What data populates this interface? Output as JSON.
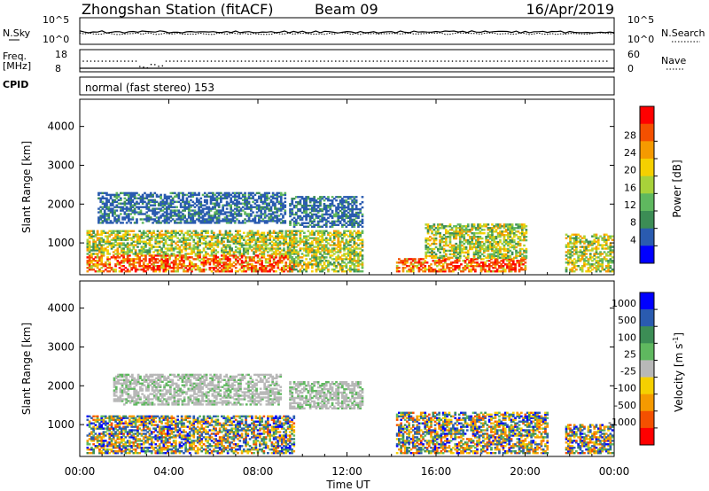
{
  "header": {
    "station": "Zhongshan Station (fitACF)",
    "beam": "Beam 09",
    "date": "16/Apr/2019"
  },
  "strip": {
    "nsky_label": "N.Sky",
    "nsky_ticks": [
      "10^5",
      "10^0"
    ],
    "nsearch_label": "N.Search",
    "nsearch_ticks": [
      "10^5",
      "10^0"
    ],
    "freq_label": "Freq.",
    "freq_unit": "[MHz]",
    "freq_ticks": [
      "18",
      "8"
    ],
    "nave_label": "Nave",
    "nave_ticks": [
      "60",
      "0"
    ],
    "cpid_label": "CPID",
    "cpid_text": "normal (fast stereo) 153"
  },
  "chart_data": [
    {
      "type": "heatmap",
      "title": "",
      "quantity": "Power",
      "xlabel": "Time UT",
      "ylabel": "Slant Range [km]",
      "x_ticks": [
        "00:00",
        "04:00",
        "08:00",
        "12:00",
        "16:00",
        "20:00",
        "00:00"
      ],
      "xlim_hours": [
        0,
        24
      ],
      "y_ticks": [
        "1000",
        "2000",
        "3000",
        "4000"
      ],
      "ylim_km": [
        180,
        4700
      ],
      "colorbar": {
        "label": "Power [dB]",
        "ticks": [
          "4",
          "8",
          "12",
          "16",
          "20",
          "24",
          "28"
        ],
        "range": [
          0,
          32
        ],
        "colors": [
          "#0000ff",
          "#2a5bb0",
          "#3c8d55",
          "#5fb85f",
          "#a8d23a",
          "#f5d000",
          "#f59a00",
          "#f45000",
          "#ff0000"
        ]
      },
      "regions": [
        {
          "t": [
            0.3,
            9.6
          ],
          "r": [
            250,
            700
          ],
          "level": "high"
        },
        {
          "t": [
            0.3,
            9.6
          ],
          "r": [
            700,
            1300
          ],
          "level": "mid"
        },
        {
          "t": [
            0.8,
            9.2
          ],
          "r": [
            1500,
            2300
          ],
          "level": "low"
        },
        {
          "t": [
            9.4,
            12.7
          ],
          "r": [
            250,
            1300
          ],
          "level": "mid"
        },
        {
          "t": [
            9.4,
            12.7
          ],
          "r": [
            1400,
            2200
          ],
          "level": "low"
        },
        {
          "t": [
            14.2,
            20.0
          ],
          "r": [
            250,
            600
          ],
          "level": "high"
        },
        {
          "t": [
            15.5,
            20.0
          ],
          "r": [
            600,
            1500
          ],
          "level": "mid"
        },
        {
          "t": [
            21.8,
            23.9
          ],
          "r": [
            250,
            1200
          ],
          "level": "mid"
        }
      ]
    },
    {
      "type": "heatmap",
      "title": "",
      "quantity": "Velocity",
      "xlabel": "Time UT",
      "ylabel": "Slant Range [km]",
      "x_ticks": [
        "00:00",
        "04:00",
        "08:00",
        "12:00",
        "16:00",
        "20:00",
        "00:00"
      ],
      "xlim_hours": [
        0,
        24
      ],
      "y_ticks": [
        "1000",
        "2000",
        "3000",
        "4000"
      ],
      "ylim_km": [
        180,
        4700
      ],
      "colorbar": {
        "label": "Velocity [m s",
        "label_sup": "-1",
        "label_end": "]",
        "ticks": [
          "1000",
          "500",
          "100",
          "25",
          "-25",
          "-100",
          "-500",
          "-1000"
        ],
        "colors": [
          "#0000ff",
          "#2a5bb0",
          "#3c8d55",
          "#5fb85f",
          "#b8b8b8",
          "#f5d000",
          "#f59a00",
          "#f45000",
          "#ff0000"
        ]
      },
      "regions": [
        {
          "t": [
            0.3,
            9.6
          ],
          "r": [
            250,
            1200
          ],
          "level": "mixed"
        },
        {
          "t": [
            1.5,
            9.0
          ],
          "r": [
            1500,
            2300
          ],
          "level": "grey"
        },
        {
          "t": [
            9.4,
            12.7
          ],
          "r": [
            1400,
            2100
          ],
          "level": "grey"
        },
        {
          "t": [
            14.2,
            21.0
          ],
          "r": [
            250,
            1300
          ],
          "level": "mixed"
        },
        {
          "t": [
            21.8,
            23.9
          ],
          "r": [
            250,
            1000
          ],
          "level": "mixed"
        }
      ]
    }
  ]
}
